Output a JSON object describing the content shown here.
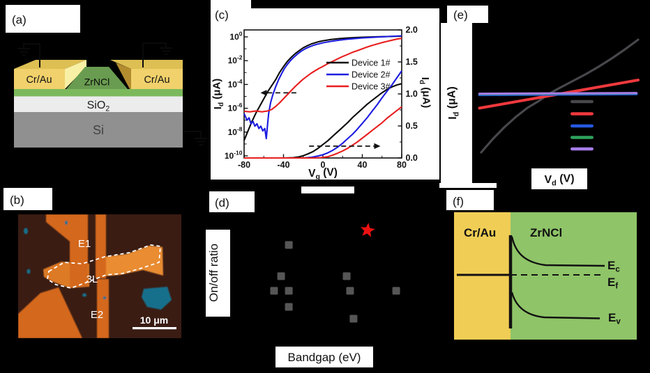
{
  "palette": {
    "gold": "#f0d16b",
    "goldTop": "#ddbf53",
    "goldSide": "#f8f0a4",
    "goldDark": "#b38c2f",
    "greenLayer": "#7cb95c",
    "greenTrap": "#699c50",
    "oxide": "#ececec",
    "substrate": "#909090",
    "microBg": "#3a1c13",
    "microOrange": "#d4671d",
    "microFlake": "#dd7a26",
    "microFlakeBright": "#e98c33",
    "microTeal": "#16708c",
    "bandYellow": "#f0cd55",
    "bandGreen": "#8fc468"
  },
  "panel_a": {
    "label": "(a)",
    "electrode_left": "Cr/Au",
    "electrode_right": "Cr/Au",
    "channel": "ZrNCl",
    "oxide": {
      "base": "SiO",
      "sub": "2"
    },
    "substrate": "Si"
  },
  "panel_b": {
    "label": "(b)",
    "electrode_top": "E1",
    "flake": "3L",
    "electrode_bottom": "E2",
    "scale_bar": "10 μm"
  },
  "panel_c": {
    "label": "(c)"
  },
  "panel_d": {
    "label": "(d)"
  },
  "panel_e": {
    "label": "(e)"
  },
  "panel_f": {
    "label": "(f)",
    "metal": "Cr/Au",
    "semiconductor": "ZrNCl",
    "conduction_band": {
      "base": "E",
      "sub": "c"
    },
    "fermi_level": {
      "base": "E",
      "sub": "f"
    },
    "valence_band": {
      "base": "E",
      "sub": "v"
    }
  },
  "chart_data": [
    {
      "panel": "c",
      "type": "line",
      "xlabel": {
        "base": "V",
        "sub": "g",
        "unit": " (V)"
      },
      "ylabel_left": {
        "base": "I",
        "sub": "d",
        "unit": " (μA)"
      },
      "ylabel_right": {
        "base": "I",
        "sub": "d",
        "unit": " (μA)"
      },
      "x_range": [
        -80,
        80
      ],
      "x_ticks": [
        -80,
        -40,
        0,
        40,
        80
      ],
      "x_minor_ticks": [
        -60,
        -20,
        20,
        60
      ],
      "y_left_scale": "log",
      "y_left_exp_ticks": [
        0,
        -2,
        -4,
        -6,
        -8,
        -10
      ],
      "y_right_range": [
        0,
        2
      ],
      "y_right_ticks": [
        0,
        0.5,
        1,
        1.5,
        2
      ],
      "legend": [
        "Device 1#",
        "Device 2#",
        "Device 3#"
      ],
      "legend_position": "upper-right",
      "series_colors": [
        "#0a0a0a",
        "#1c1ce0",
        "#e81e1e"
      ],
      "series_log": [
        {
          "name": "Device 1#",
          "points": [
            [
              -80,
              -8.7
            ],
            [
              -76,
              -7.9
            ],
            [
              -72,
              -7.1
            ],
            [
              -68,
              -6.4
            ],
            [
              -64,
              -5.8
            ],
            [
              -60,
              -5.2
            ],
            [
              -56,
              -4.6
            ],
            [
              -52,
              -4.1
            ],
            [
              -48,
              -3.6
            ],
            [
              -44,
              -3.0
            ],
            [
              -40,
              -2.5
            ],
            [
              -36,
              -2.05
            ],
            [
              -32,
              -1.7
            ],
            [
              -28,
              -1.4
            ],
            [
              -24,
              -1.15
            ],
            [
              -20,
              -0.92
            ],
            [
              -16,
              -0.75
            ],
            [
              -12,
              -0.6
            ],
            [
              -8,
              -0.5
            ],
            [
              -4,
              -0.4
            ],
            [
              0,
              -0.33
            ],
            [
              8,
              -0.22
            ],
            [
              16,
              -0.15
            ],
            [
              24,
              -0.1
            ],
            [
              32,
              -0.06
            ],
            [
              40,
              -0.03
            ],
            [
              56,
              0.01
            ],
            [
              80,
              0.06
            ]
          ]
        },
        {
          "name": "Device 2#",
          "points": [
            [
              -80,
              -6.45
            ],
            [
              -77,
              -7.0
            ],
            [
              -75,
              -6.8
            ],
            [
              -73,
              -7.3
            ],
            [
              -71,
              -7.1
            ],
            [
              -69,
              -7.5
            ],
            [
              -67,
              -7.3
            ],
            [
              -65,
              -7.7
            ],
            [
              -63,
              -7.5
            ],
            [
              -61,
              -7.9
            ],
            [
              -59,
              -7.7
            ],
            [
              -57.5,
              -8.55
            ],
            [
              -56,
              -7.2
            ],
            [
              -55,
              -6.4
            ],
            [
              -53,
              -5.5
            ],
            [
              -51,
              -4.9
            ],
            [
              -48,
              -4.2
            ],
            [
              -45,
              -3.6
            ],
            [
              -42,
              -3.1
            ],
            [
              -39,
              -2.65
            ],
            [
              -36,
              -2.3
            ],
            [
              -33,
              -2.0
            ],
            [
              -30,
              -1.75
            ],
            [
              -26,
              -1.45
            ],
            [
              -22,
              -1.2
            ],
            [
              -18,
              -1.0
            ],
            [
              -14,
              -0.85
            ],
            [
              -10,
              -0.72
            ],
            [
              -6,
              -0.62
            ],
            [
              0,
              -0.5
            ],
            [
              8,
              -0.38
            ],
            [
              16,
              -0.28
            ],
            [
              24,
              -0.2
            ],
            [
              32,
              -0.14
            ],
            [
              40,
              -0.09
            ],
            [
              56,
              -0.01
            ],
            [
              80,
              0.09
            ]
          ]
        },
        {
          "name": "Device 3#",
          "points": [
            [
              -80,
              -6.25
            ],
            [
              -74,
              -6.3
            ],
            [
              -68,
              -6.22
            ],
            [
              -62,
              -6.3
            ],
            [
              -56,
              -6.22
            ],
            [
              -52,
              -6.1
            ],
            [
              -48,
              -5.85
            ],
            [
              -44,
              -5.55
            ],
            [
              -40,
              -5.2
            ],
            [
              -36,
              -4.85
            ],
            [
              -32,
              -4.5
            ],
            [
              -28,
              -4.15
            ],
            [
              -24,
              -3.85
            ],
            [
              -20,
              -3.55
            ],
            [
              -16,
              -3.3
            ],
            [
              -12,
              -3.05
            ],
            [
              -8,
              -2.85
            ],
            [
              -4,
              -2.65
            ],
            [
              0,
              -2.48
            ],
            [
              5,
              -2.25
            ],
            [
              10,
              -2.05
            ],
            [
              15,
              -1.85
            ],
            [
              20,
              -1.65
            ],
            [
              25,
              -1.48
            ],
            [
              30,
              -1.3
            ],
            [
              35,
              -1.15
            ],
            [
              40,
              -1.0
            ],
            [
              45,
              -0.85
            ],
            [
              50,
              -0.72
            ],
            [
              55,
              -0.6
            ],
            [
              60,
              -0.48
            ],
            [
              65,
              -0.38
            ],
            [
              70,
              -0.28
            ],
            [
              75,
              -0.19
            ],
            [
              80,
              -0.12
            ]
          ]
        }
      ],
      "series_linear": [
        {
          "name": "Device 1#",
          "points": [
            [
              -80,
              0
            ],
            [
              -40,
              0
            ],
            [
              -30,
              0.005
            ],
            [
              -25,
              0.015
            ],
            [
              -20,
              0.035
            ],
            [
              -15,
              0.065
            ],
            [
              -10,
              0.1
            ],
            [
              -5,
              0.15
            ],
            [
              0,
              0.21
            ],
            [
              5,
              0.27
            ],
            [
              10,
              0.34
            ],
            [
              15,
              0.41
            ],
            [
              20,
              0.48
            ],
            [
              25,
              0.55
            ],
            [
              30,
              0.63
            ],
            [
              35,
              0.7
            ],
            [
              40,
              0.77
            ],
            [
              45,
              0.84
            ],
            [
              50,
              0.9
            ],
            [
              55,
              0.96
            ],
            [
              60,
              1.02
            ],
            [
              65,
              1.07
            ],
            [
              70,
              1.11
            ],
            [
              75,
              1.14
            ],
            [
              80,
              1.16
            ]
          ]
        },
        {
          "name": "Device 2#",
          "points": [
            [
              -80,
              0
            ],
            [
              -20,
              0
            ],
            [
              -12,
              0.01
            ],
            [
              -5,
              0.03
            ],
            [
              0,
              0.05
            ],
            [
              5,
              0.08
            ],
            [
              10,
              0.12
            ],
            [
              15,
              0.17
            ],
            [
              20,
              0.23
            ],
            [
              25,
              0.3
            ],
            [
              30,
              0.37
            ],
            [
              35,
              0.45
            ],
            [
              40,
              0.54
            ],
            [
              45,
              0.63
            ],
            [
              50,
              0.73
            ],
            [
              55,
              0.83
            ],
            [
              60,
              0.94
            ],
            [
              65,
              1.04
            ],
            [
              70,
              1.14
            ],
            [
              75,
              1.25
            ],
            [
              80,
              1.36
            ]
          ]
        },
        {
          "name": "Device 3#",
          "points": [
            [
              -80,
              0
            ],
            [
              -10,
              0
            ],
            [
              -2,
              0.005
            ],
            [
              5,
              0.02
            ],
            [
              10,
              0.045
            ],
            [
              15,
              0.075
            ],
            [
              20,
              0.11
            ],
            [
              25,
              0.15
            ],
            [
              30,
              0.2
            ],
            [
              35,
              0.25
            ],
            [
              40,
              0.31
            ],
            [
              45,
              0.37
            ],
            [
              50,
              0.43
            ],
            [
              55,
              0.49
            ],
            [
              60,
              0.55
            ],
            [
              65,
              0.62
            ],
            [
              70,
              0.68
            ],
            [
              75,
              0.74
            ],
            [
              80,
              0.8
            ]
          ]
        }
      ],
      "annotations": {
        "left_arrow": {
          "x_from": -27,
          "x_to": -57,
          "exp": -4.7,
          "dir": "left"
        },
        "right_arrow": {
          "x_from": -14,
          "x_to": 52,
          "value": 0.185,
          "dir": "right"
        }
      }
    },
    {
      "panel": "d",
      "type": "scatter",
      "xlabel": "Bandgap (eV)",
      "ylabel": "On/off ratio",
      "axes_visible": false,
      "point_color": "#565656",
      "star_color": "#ee1111",
      "points_norm": [
        [
          0.29,
          0.319
        ],
        [
          0.252,
          0.533
        ],
        [
          0.217,
          0.633
        ],
        [
          0.29,
          0.633
        ],
        [
          0.29,
          0.743
        ],
        [
          0.576,
          0.533
        ],
        [
          0.593,
          0.633
        ],
        [
          0.821,
          0.633
        ],
        [
          0.61,
          0.824
        ]
      ],
      "star_norm": [
        0.679,
        0.219
      ]
    },
    {
      "panel": "e",
      "type": "line",
      "xlabel": {
        "base": "V",
        "sub": "d",
        "unit": " (V)"
      },
      "ylabel": {
        "base": "I",
        "sub": "d",
        "unit": " (μA)"
      },
      "axes_visible": false,
      "series": [
        {
          "color": "#47474c",
          "points_norm": [
            [
              0.05,
              0.895
            ],
            [
              0.12,
              0.8
            ],
            [
              0.19,
              0.715
            ],
            [
              0.26,
              0.64
            ],
            [
              0.33,
              0.575
            ],
            [
              0.4,
              0.525
            ],
            [
              0.455,
              0.478
            ],
            [
              0.52,
              0.435
            ],
            [
              0.6,
              0.385
            ],
            [
              0.68,
              0.335
            ],
            [
              0.76,
              0.28
            ],
            [
              0.84,
              0.22
            ],
            [
              0.92,
              0.155
            ],
            [
              1.0,
              0.085
            ]
          ]
        },
        {
          "color": "#ef393d",
          "points_norm": [
            [
              0.04,
              0.577
            ],
            [
              1.0,
              0.375
            ]
          ]
        },
        {
          "color": "#2559e2",
          "points_norm": [
            [
              0.04,
              0.481
            ],
            [
              0.99,
              0.475
            ]
          ]
        },
        {
          "color": "#2ea15c",
          "points_norm": [
            [
              0.04,
              0.477
            ],
            [
              0.99,
              0.471
            ]
          ]
        },
        {
          "color": "#a77ce8",
          "points_norm": [
            [
              0.04,
              0.473
            ],
            [
              0.99,
              0.468
            ]
          ]
        }
      ],
      "legend_colors": [
        "#47474c",
        "#ef393d",
        "#2559e2",
        "#2ea15c",
        "#a77ce8"
      ]
    }
  ]
}
